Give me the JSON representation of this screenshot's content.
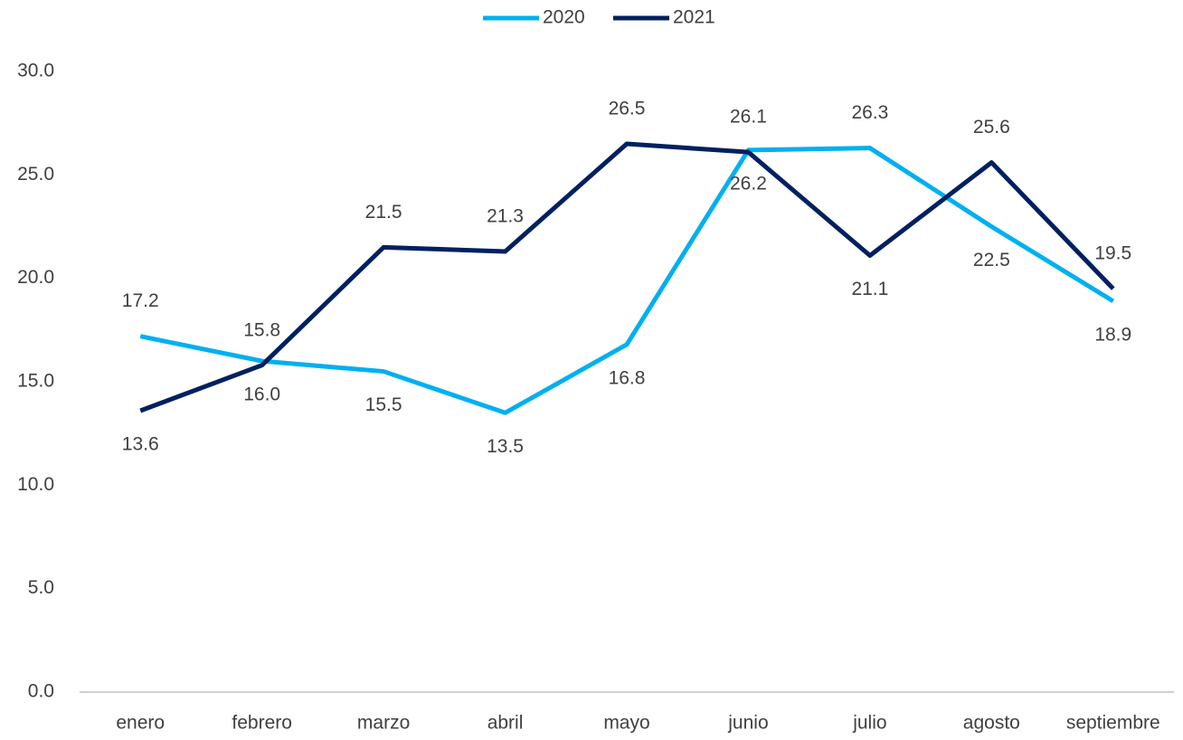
{
  "chart_data": {
    "type": "line",
    "categories": [
      "enero",
      "febrero",
      "marzo",
      "abril",
      "mayo",
      "junio",
      "julio",
      "agosto",
      "septiembre"
    ],
    "series": [
      {
        "name": "2020",
        "color": "#00b0f0",
        "values": [
          17.2,
          16.0,
          15.5,
          13.5,
          16.8,
          26.2,
          26.3,
          22.5,
          18.9
        ],
        "value_labels": [
          "17.2",
          "16.0",
          "15.5",
          "13.5",
          "16.8",
          "26.2",
          "26.3",
          "22.5",
          "18.9"
        ]
      },
      {
        "name": "2021",
        "color": "#002060",
        "values": [
          13.6,
          15.8,
          21.5,
          21.3,
          26.5,
          26.1,
          21.1,
          25.6,
          19.5
        ],
        "value_labels": [
          "13.6",
          "15.8",
          "21.5",
          "21.3",
          "26.5",
          "26.1",
          "21.1",
          "25.6",
          "19.5"
        ]
      }
    ],
    "ylim": [
      0,
      30
    ],
    "yticks": [
      {
        "value": 0,
        "label": "0.0"
      },
      {
        "value": 5,
        "label": "5.0"
      },
      {
        "value": 10,
        "label": "10.0"
      },
      {
        "value": 15,
        "label": "15.0"
      },
      {
        "value": 20,
        "label": "20.0"
      },
      {
        "value": 25,
        "label": "25.0"
      },
      {
        "value": 30,
        "label": "30.0"
      }
    ],
    "grid": false,
    "legend": "top"
  }
}
